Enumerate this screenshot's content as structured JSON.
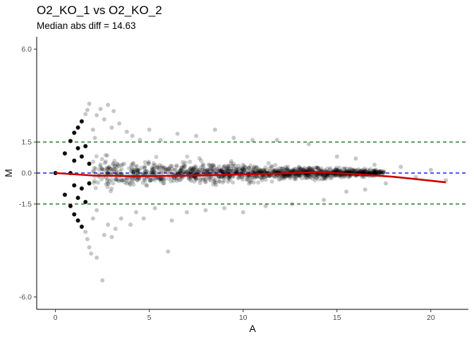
{
  "chart_data": {
    "type": "scatter",
    "title": "O2_KO_1 vs O2_KO_2",
    "subtitle": "Median abs diff = 14.63",
    "xlabel": "A",
    "ylabel": "M",
    "xlim": [
      -1,
      22
    ],
    "ylim": [
      -6.6,
      6.6
    ],
    "x_ticks": [
      0,
      5,
      10,
      15,
      20
    ],
    "x_tick_labels": [
      "0",
      "5",
      "10",
      "15",
      "20"
    ],
    "y_ticks": [
      6,
      1.5,
      0,
      -1.5,
      -6
    ],
    "y_tick_labels": [
      "6.0",
      "1.5",
      "0.0",
      "-1.5",
      "-6.0"
    ],
    "grid": false,
    "colors": {
      "points": "#000000",
      "threshold_lines": "#2e7d32",
      "zero_line": "#1f1fff",
      "trend": "#cc0000"
    },
    "reference_lines": [
      {
        "y": 1.5,
        "style": "dashed",
        "color": "#2e7d32"
      },
      {
        "y": -1.5,
        "style": "dashed",
        "color": "#2e7d32"
      },
      {
        "y": 0,
        "style": "dashed",
        "color": "#1f1fff"
      }
    ],
    "trend": {
      "x": [
        0,
        2,
        4,
        6,
        8,
        10,
        12,
        14,
        16,
        18,
        19.5,
        20.8
      ],
      "y": [
        0.0,
        -0.12,
        -0.15,
        -0.14,
        -0.11,
        -0.07,
        -0.02,
        0.04,
        -0.05,
        -0.18,
        -0.32,
        -0.45
      ]
    },
    "points_solid": [
      {
        "x": 0,
        "y": 0
      },
      {
        "x": 0.5,
        "y": 0.95
      },
      {
        "x": 0.5,
        "y": -1.05
      },
      {
        "x": 0.8,
        "y": 1.55
      },
      {
        "x": 0.8,
        "y": -1.6
      },
      {
        "x": 0.8,
        "y": 0
      },
      {
        "x": 1.0,
        "y": 1.95
      },
      {
        "x": 1.0,
        "y": -2.0
      },
      {
        "x": 1.0,
        "y": 0.6
      },
      {
        "x": 1.0,
        "y": -0.6
      },
      {
        "x": 1.2,
        "y": 2.2
      },
      {
        "x": 1.2,
        "y": -2.3
      },
      {
        "x": 1.2,
        "y": 1.2
      },
      {
        "x": 1.2,
        "y": -1.2
      },
      {
        "x": 1.4,
        "y": 2.5
      },
      {
        "x": 1.4,
        "y": -2.6
      },
      {
        "x": 1.4,
        "y": 0.8
      },
      {
        "x": 1.4,
        "y": -0.75
      },
      {
        "x": 1.6,
        "y": 1.3
      },
      {
        "x": 1.6,
        "y": -1.4
      },
      {
        "x": 1.8,
        "y": 0.45
      },
      {
        "x": 1.8,
        "y": -0.5
      }
    ],
    "points_translucent": [
      {
        "x": 1.6,
        "y": 2.85
      },
      {
        "x": 1.7,
        "y": 3.05
      },
      {
        "x": 1.8,
        "y": 3.35
      },
      {
        "x": 1.6,
        "y": -2.85
      },
      {
        "x": 1.7,
        "y": -3.2
      },
      {
        "x": 1.8,
        "y": -3.6
      },
      {
        "x": 1.9,
        "y": -3.9
      },
      {
        "x": 2.0,
        "y": 2.1
      },
      {
        "x": 2.0,
        "y": -2.2
      },
      {
        "x": 2.1,
        "y": 1.7
      },
      {
        "x": 2.2,
        "y": -1.8
      },
      {
        "x": 2.2,
        "y": 2.8
      },
      {
        "x": 2.2,
        "y": -4.1
      },
      {
        "x": 2.4,
        "y": 3.1
      },
      {
        "x": 2.5,
        "y": -5.2
      },
      {
        "x": 2.6,
        "y": 2.6
      },
      {
        "x": 2.6,
        "y": -3.0
      },
      {
        "x": 2.8,
        "y": 3.3
      },
      {
        "x": 2.8,
        "y": -2.5
      },
      {
        "x": 3.0,
        "y": 2.2
      },
      {
        "x": 3.0,
        "y": -3.1
      },
      {
        "x": 3.1,
        "y": 3.0
      },
      {
        "x": 3.2,
        "y": -2.7
      },
      {
        "x": 3.4,
        "y": 2.4
      },
      {
        "x": 3.5,
        "y": -2.2
      },
      {
        "x": 3.8,
        "y": 2.0
      },
      {
        "x": 4.0,
        "y": -2.5
      },
      {
        "x": 4.1,
        "y": 1.8
      },
      {
        "x": 4.3,
        "y": -1.9
      },
      {
        "x": 4.5,
        "y": 1.6
      },
      {
        "x": 4.7,
        "y": -2.2
      },
      {
        "x": 5.0,
        "y": 2.1
      },
      {
        "x": 5.3,
        "y": -1.7
      },
      {
        "x": 5.6,
        "y": 1.6
      },
      {
        "x": 6.0,
        "y": -3.8
      },
      {
        "x": 6.2,
        "y": -2.3
      },
      {
        "x": 6.5,
        "y": 1.9
      },
      {
        "x": 7.0,
        "y": -1.9
      },
      {
        "x": 7.5,
        "y": 1.8
      },
      {
        "x": 8.0,
        "y": -1.8
      },
      {
        "x": 8.5,
        "y": 2.1
      },
      {
        "x": 9.0,
        "y": -1.7
      },
      {
        "x": 9.5,
        "y": 1.7
      },
      {
        "x": 10.0,
        "y": -1.9
      },
      {
        "x": 10.5,
        "y": 1.6
      },
      {
        "x": 11.2,
        "y": -1.6
      },
      {
        "x": 11.8,
        "y": 1.6
      },
      {
        "x": 12.6,
        "y": -1.5
      },
      {
        "x": 13.5,
        "y": 1.4
      },
      {
        "x": 14.3,
        "y": -1.3
      },
      {
        "x": 15.0,
        "y": 0.8
      },
      {
        "x": 15.5,
        "y": -0.9
      },
      {
        "x": 16.0,
        "y": 0.7
      },
      {
        "x": 16.5,
        "y": -0.8
      },
      {
        "x": 17.0,
        "y": 0.4
      },
      {
        "x": 17.6,
        "y": -0.5
      },
      {
        "x": 18.4,
        "y": 0.3
      },
      {
        "x": 19.2,
        "y": -0.2
      },
      {
        "x": 20.0,
        "y": 0.15
      },
      {
        "x": 20.8,
        "y": -0.35
      }
    ]
  }
}
